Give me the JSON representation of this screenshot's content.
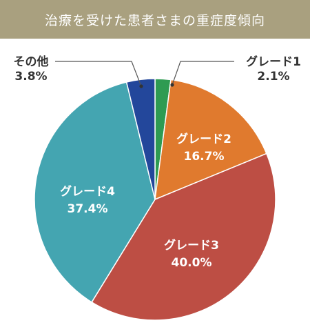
{
  "header": {
    "title": "治療を受けた患者さまの重症度傾向"
  },
  "chart_data": {
    "type": "pie",
    "title": "治療を受けた患者さまの重症度傾向",
    "start": "top",
    "direction": "clockwise",
    "slices": [
      {
        "name": "グレード1",
        "value": 2.1,
        "label": "2.1%",
        "color": "#2e9b52"
      },
      {
        "name": "グレード2",
        "value": 16.7,
        "label": "16.7%",
        "color": "#e07a2e"
      },
      {
        "name": "グレード3",
        "value": 40.0,
        "label": "40.0%",
        "color": "#bd4e44"
      },
      {
        "name": "グレード4",
        "value": 37.4,
        "label": "37.4%",
        "color": "#44a5b1"
      },
      {
        "name": "その他",
        "value": 3.8,
        "label": "3.8%",
        "color": "#23479b"
      }
    ],
    "slice_border_color": "#ffffff",
    "callout_color": "#555555"
  }
}
